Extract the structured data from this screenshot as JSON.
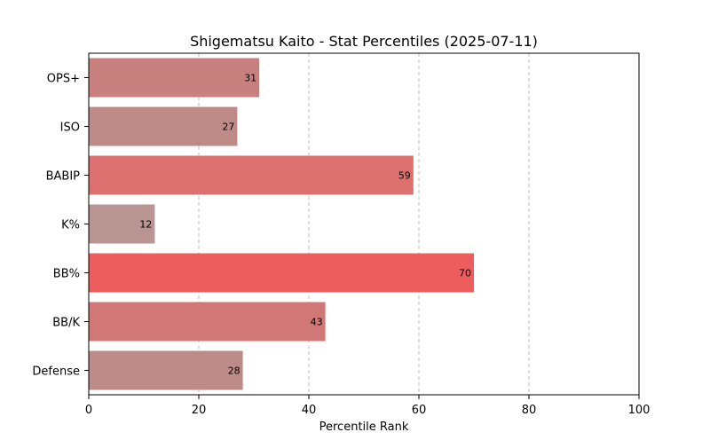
{
  "chart_data": {
    "type": "bar",
    "orientation": "horizontal",
    "title": "Shigematsu Kaito - Stat Percentiles (2025-07-11)",
    "xlabel": "Percentile Rank",
    "ylabel": "",
    "xlim": [
      0,
      100
    ],
    "xticks": [
      0,
      20,
      40,
      60,
      80,
      100
    ],
    "grid": "x-dashed",
    "categories": [
      "OPS+",
      "ISO",
      "BABIP",
      "K%",
      "BB%",
      "BB/K",
      "Defense"
    ],
    "values": [
      31,
      27,
      59,
      12,
      70,
      43,
      28
    ],
    "colors": [
      "#c7807e",
      "#bf8b88",
      "#db706f",
      "#b89593",
      "#ee5d5d",
      "#d17775",
      "#bd8b88"
    ]
  }
}
